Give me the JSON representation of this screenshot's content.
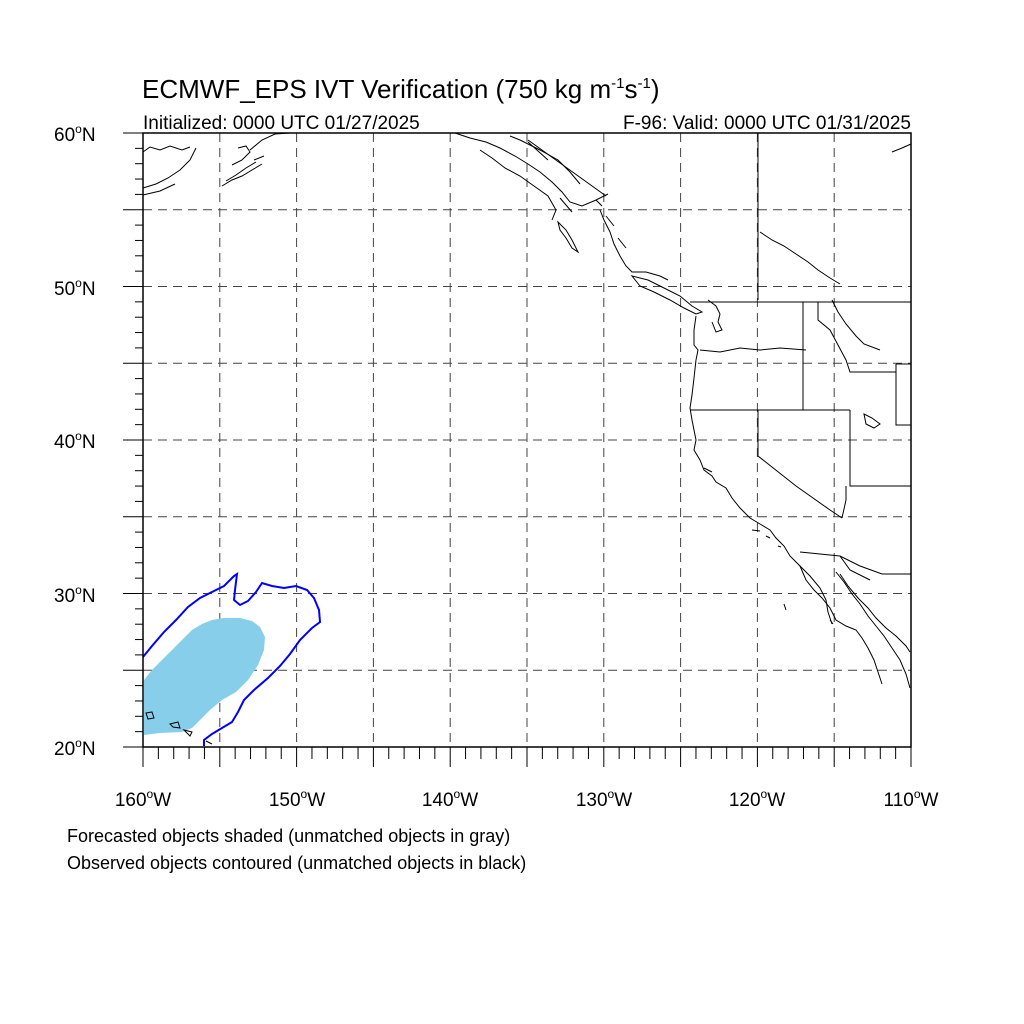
{
  "title": {
    "prefix": "ECMWF_EPS IVT Verification (750 kg m",
    "exp1": "-1",
    "mid": "s",
    "exp2": "-1",
    "suffix": ")"
  },
  "subtitle_left": "Initialized: 0000 UTC 01/27/2025",
  "subtitle_right": "F-96: Valid: 0000 UTC 01/31/2025",
  "map": {
    "lon_range": [
      -160,
      -110
    ],
    "lat_range": [
      20,
      60
    ],
    "grid": "dashed every 5 degrees",
    "lat_labels": [
      "20",
      "30",
      "40",
      "50",
      "60"
    ],
    "lat_values": [
      20,
      30,
      40,
      50,
      60
    ],
    "lat_suffix": "N",
    "lon_labels": [
      "160",
      "150",
      "140",
      "130",
      "120",
      "110"
    ],
    "lon_values": [
      -160,
      -150,
      -140,
      -130,
      -120,
      -110
    ],
    "lon_suffix": "W"
  },
  "objects": {
    "forecast_color": "#87ceeb",
    "observed_color": "#0000ff",
    "basemap_color": "#000000"
  },
  "notes": [
    "Forecasted objects shaded (unmatched objects in gray)",
    "Observed objects contoured (unmatched objects in black)"
  ]
}
